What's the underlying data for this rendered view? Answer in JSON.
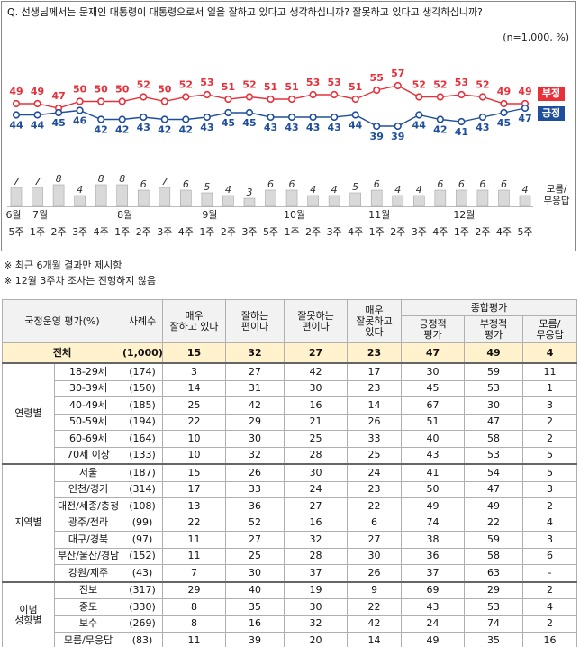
{
  "chart_data": {
    "type": "line",
    "title": "Q. 선생님께서는 문재인 대통령이 대통령으로서 일을 잘하고 있다고 생각하십니까? 잘못하고 있다고 생각하십니까?",
    "note": "(n=1,000, %)",
    "months": [
      "6월",
      "7월",
      null,
      null,
      null,
      "8월",
      null,
      null,
      null,
      "9월",
      null,
      null,
      null,
      "10월",
      null,
      null,
      null,
      "11월",
      null,
      null,
      null,
      "12월",
      null,
      null,
      null
    ],
    "categories": [
      "5주",
      "1주",
      "2주",
      "3주",
      "4주",
      "1주",
      "2주",
      "3주",
      "4주",
      "1주",
      "2주",
      "3주",
      "5주",
      "1주",
      "2주",
      "3주",
      "4주",
      "1주",
      "2주",
      "3주",
      "4주",
      "1주",
      "2주",
      "4주",
      "5주"
    ],
    "series": [
      {
        "name": "부정",
        "color": "#e8303a",
        "values": [
          49,
          49,
          47,
          50,
          50,
          50,
          52,
          50,
          52,
          53,
          51,
          52,
          51,
          51,
          53,
          53,
          51,
          55,
          57,
          52,
          52,
          53,
          52,
          49,
          49
        ]
      },
      {
        "name": "긍정",
        "color": "#1f4e9c",
        "values": [
          44,
          44,
          45,
          46,
          42,
          42,
          43,
          42,
          42,
          43,
          45,
          45,
          43,
          43,
          43,
          43,
          44,
          39,
          39,
          44,
          42,
          41,
          43,
          45,
          47
        ]
      },
      {
        "name": "모름/\n무응답",
        "type": "bar",
        "color": "#d9d9d9",
        "values": [
          7,
          7,
          8,
          4,
          8,
          8,
          6,
          7,
          6,
          5,
          4,
          3,
          6,
          6,
          4,
          4,
          5,
          6,
          4,
          4,
          6,
          6,
          6,
          6,
          4
        ]
      }
    ]
  },
  "notes": [
    "※ 최근 6개월 결과만 제시함",
    "※ 12월 3주차 조사는 진행하지 않음"
  ],
  "table": {
    "header": {
      "label": "국정운영 평가(%)",
      "columns": [
        "사례수",
        "매우\n잘하고 있다",
        "잘하는\n편이다",
        "잘못하는\n편이다",
        "매우\n잘못하고\n있다"
      ],
      "composite": "종합평가",
      "sub": [
        "긍정적\n평가",
        "부정적\n평가",
        "모름/\n무응답"
      ]
    },
    "total": [
      "전체",
      "(1,000)",
      "15",
      "32",
      "27",
      "23",
      "47",
      "49",
      "4"
    ],
    "groups": [
      {
        "label": "연령별",
        "rows": [
          [
            "18-29세",
            "(174)",
            "3",
            "27",
            "42",
            "17",
            "30",
            "59",
            "11"
          ],
          [
            "30-39세",
            "(150)",
            "14",
            "31",
            "30",
            "23",
            "45",
            "53",
            "1"
          ],
          [
            "40-49세",
            "(185)",
            "25",
            "42",
            "16",
            "14",
            "67",
            "30",
            "3"
          ],
          [
            "50-59세",
            "(194)",
            "22",
            "29",
            "21",
            "26",
            "51",
            "47",
            "2"
          ],
          [
            "60-69세",
            "(164)",
            "10",
            "30",
            "25",
            "33",
            "40",
            "58",
            "2"
          ],
          [
            "70세 이상",
            "(133)",
            "10",
            "32",
            "28",
            "25",
            "43",
            "53",
            "5"
          ]
        ]
      },
      {
        "label": "지역별",
        "rows": [
          [
            "서울",
            "(187)",
            "15",
            "26",
            "30",
            "24",
            "41",
            "54",
            "5"
          ],
          [
            "인천/경기",
            "(314)",
            "17",
            "33",
            "24",
            "23",
            "50",
            "47",
            "3"
          ],
          [
            "대전/세종/충청",
            "(108)",
            "13",
            "36",
            "27",
            "22",
            "49",
            "49",
            "2"
          ],
          [
            "광주/전라",
            "(99)",
            "22",
            "52",
            "16",
            "6",
            "74",
            "22",
            "4"
          ],
          [
            "대구/경북",
            "(97)",
            "11",
            "27",
            "32",
            "27",
            "38",
            "59",
            "3"
          ],
          [
            "부산/울산/경남",
            "(152)",
            "11",
            "25",
            "28",
            "30",
            "36",
            "58",
            "6"
          ],
          [
            "강원/제주",
            "(43)",
            "7",
            "30",
            "37",
            "26",
            "37",
            "63",
            "-"
          ]
        ]
      },
      {
        "label": "이념\n성향별",
        "rows": [
          [
            "진보",
            "(317)",
            "29",
            "40",
            "19",
            "9",
            "69",
            "29",
            "2"
          ],
          [
            "중도",
            "(330)",
            "8",
            "35",
            "30",
            "22",
            "43",
            "53",
            "4"
          ],
          [
            "보수",
            "(269)",
            "8",
            "16",
            "32",
            "42",
            "24",
            "74",
            "2"
          ],
          [
            "모름/무응답",
            "(83)",
            "11",
            "39",
            "20",
            "14",
            "49",
            "35",
            "16"
          ]
        ]
      }
    ]
  }
}
